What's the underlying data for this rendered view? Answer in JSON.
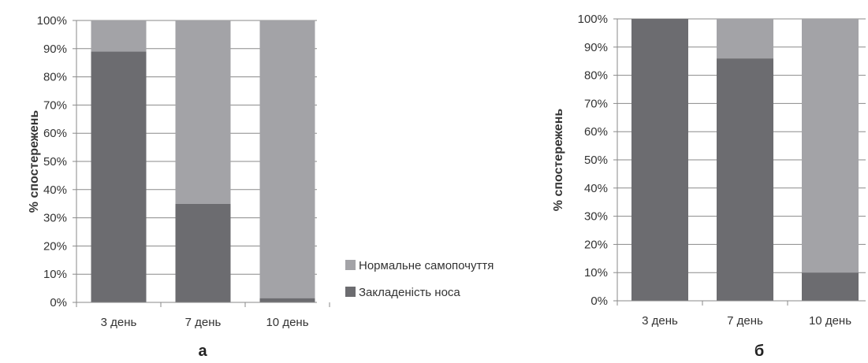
{
  "colors": {
    "normal": "#a3a3a7",
    "congestion": "#6c6c70",
    "grid": "#8a8a8a",
    "text": "#333333"
  },
  "legend": {
    "items": [
      {
        "label": "Нормальне самопочуття",
        "color": "#a3a3a7"
      },
      {
        "label": "Закладеність носа",
        "color": "#6c6c70"
      }
    ]
  },
  "chart_data": [
    {
      "panel": "а",
      "type": "bar",
      "stacked": true,
      "ylabel": "% спостережень",
      "ylim": [
        0,
        100
      ],
      "yticks": [
        "0%",
        "10%",
        "20%",
        "30%",
        "40%",
        "50%",
        "60%",
        "70%",
        "80%",
        "90%",
        "100%"
      ],
      "categories": [
        "3 день",
        "7 день",
        "10 день"
      ],
      "series": [
        {
          "name": "Закладеність носа",
          "values": [
            89,
            35,
            1.5
          ]
        },
        {
          "name": "Нормальне самопочуття",
          "values": [
            11,
            65,
            98.5
          ]
        }
      ],
      "grid": true
    },
    {
      "panel": "б",
      "type": "bar",
      "stacked": true,
      "ylabel": "% спостережень",
      "ylim": [
        0,
        100
      ],
      "yticks": [
        "0%",
        "10%",
        "20%",
        "30%",
        "40%",
        "50%",
        "60%",
        "70%",
        "80%",
        "90%",
        "100%"
      ],
      "categories": [
        "3 день",
        "7 день",
        "10 день"
      ],
      "series": [
        {
          "name": "Закладеність носа",
          "values": [
            100,
            86,
            10
          ]
        },
        {
          "name": "Нормальне самопочуття",
          "values": [
            0,
            14,
            90
          ]
        }
      ],
      "grid": true
    }
  ]
}
